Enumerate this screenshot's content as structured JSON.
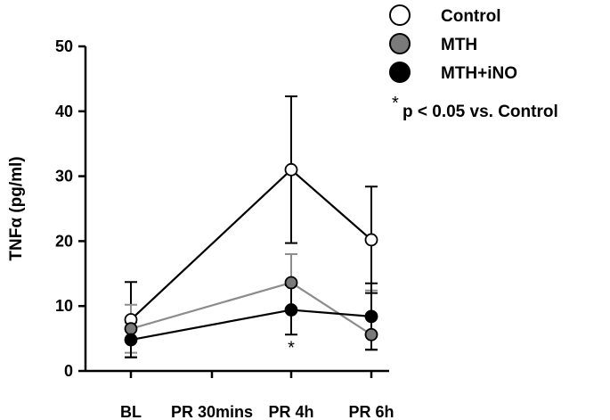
{
  "chart_data": {
    "type": "line",
    "categories": [
      "BL",
      "PR 30mins",
      "PR 4h",
      "PR 6h"
    ],
    "ylabel": "TNFα (pg/ml)",
    "xlabel": "",
    "ylim": [
      0,
      50
    ],
    "yticks": [
      0,
      10,
      20,
      30,
      40,
      50
    ],
    "grid": false,
    "legend_position": "top-right",
    "series": [
      {
        "name": "Control",
        "marker_fill": "#ffffff",
        "line_color": "#000000",
        "points": [
          {
            "category": "BL",
            "y": 7.9,
            "err_upper": 5.8,
            "err_lower": 5.8
          },
          {
            "category": "PR 4h",
            "y": 31.0,
            "err_upper": 11.3,
            "err_lower": 11.3
          },
          {
            "category": "PR 6h",
            "y": 20.2,
            "err_upper": 8.2,
            "err_lower": 8.2
          }
        ]
      },
      {
        "name": "MTH",
        "marker_fill": "#7a7a7a",
        "line_color": "#8c8c8c",
        "points": [
          {
            "category": "BL",
            "y": 6.5,
            "err_upper": 3.7,
            "err_lower": 3.7
          },
          {
            "category": "PR 4h",
            "y": 13.6,
            "err_upper": 4.4,
            "err_lower": 4.4
          },
          {
            "category": "PR 6h",
            "y": 5.6,
            "err_upper": 6.8,
            "err_lower": 2.4
          }
        ]
      },
      {
        "name": "MTH+iNO",
        "marker_fill": "#000000",
        "line_color": "#000000",
        "points": [
          {
            "category": "BL",
            "y": 4.8,
            "err_upper": 2.7,
            "err_lower": 2.7
          },
          {
            "category": "PR 4h",
            "y": 9.4,
            "err_upper": 3.8,
            "err_lower": 3.8
          },
          {
            "category": "PR 6h",
            "y": 8.4,
            "err_upper": 5.1,
            "err_lower": 5.1
          }
        ]
      }
    ],
    "annotations": [
      {
        "text": "*",
        "category": "PR 4h",
        "y": 3.5
      }
    ],
    "significance_note": {
      "symbol": "*",
      "text": "p < 0.05 vs. Control"
    }
  }
}
